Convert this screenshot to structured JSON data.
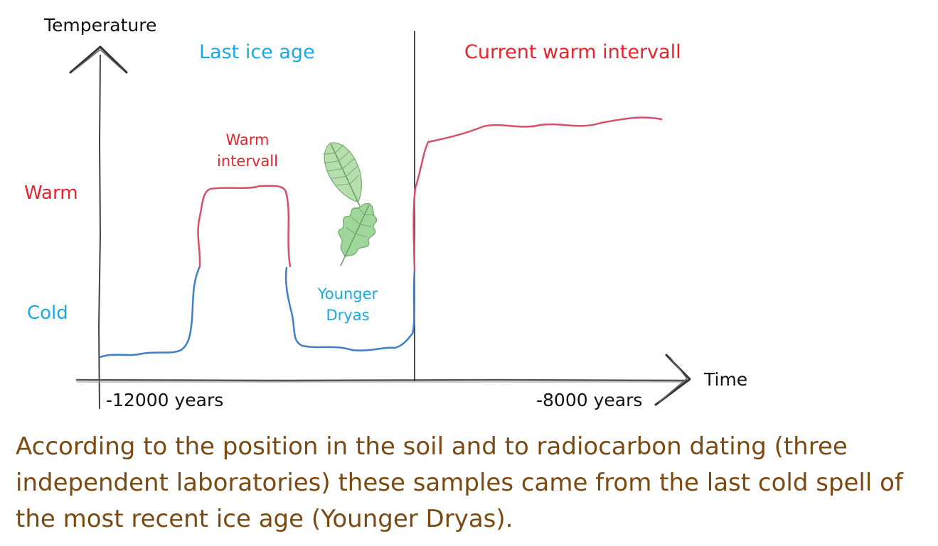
{
  "colors": {
    "warm": "#e8232b",
    "cold": "#1aa9e0",
    "warm_line": "#d6506a",
    "cold_line": "#3f7fc9",
    "caption": "#7a4a12",
    "axis": "#222222",
    "leaf": "#9fd79a"
  },
  "icons": [
    "leaf-icon",
    "oak-leaf-icon",
    "axis-arrow-icon"
  ],
  "diagram": {
    "y_axis_label": "Temperature",
    "x_axis_label": "Time",
    "era_left": "Last ice age",
    "era_right": "Current warm intervall",
    "warm_interval_label_line1": "Warm",
    "warm_interval_label_line2": "intervall",
    "younger_dryas_label_line1": "Younger",
    "younger_dryas_label_line2": "Dryas",
    "level_warm": "Warm",
    "level_cold": "Cold",
    "tick_start": "-12000 years",
    "tick_end": "-8000 years"
  },
  "caption": "According to the position in the soil and to radiocarbon dating (three independent laboratories) these samples came from the last cold spell of the most recent ice age (Younger Dryas)."
}
